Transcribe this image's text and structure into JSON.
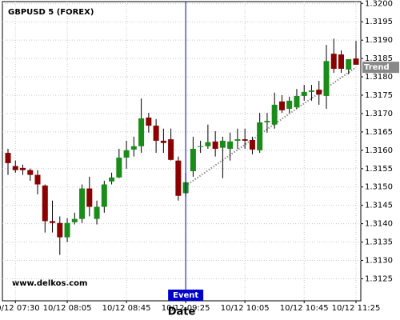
{
  "chart_data": {
    "type": "candlestick",
    "title": "GBPUSD 5 (FOREX)",
    "watermark": "www.delkos.com",
    "x_label": "Date",
    "categories": [
      null,
      "10/12 07:30",
      null,
      null,
      null,
      null,
      null,
      null,
      "10/12 08:05",
      null,
      null,
      null,
      null,
      null,
      null,
      null,
      "10/12 08:45",
      null,
      null,
      null,
      null,
      null,
      null,
      null,
      "10/12 09:25",
      null,
      null,
      null,
      null,
      null,
      null,
      null,
      "10/12 10:05",
      null,
      null,
      null,
      null,
      null,
      null,
      null,
      "10/12 10:45",
      null,
      null,
      null,
      null,
      null,
      null,
      "10/12 11:25"
    ],
    "open": [
      1.31593,
      1.31557,
      1.31552,
      1.31546,
      1.31533,
      1.31504,
      1.31407,
      1.31402,
      1.31363,
      1.31404,
      1.31413,
      1.31496,
      1.31413,
      1.31446,
      1.31515,
      1.31526,
      1.3158,
      1.31602,
      1.31611,
      1.31689,
      1.31667,
      1.31626,
      1.3163,
      1.31572,
      1.31483,
      1.31543,
      1.31609,
      1.31611,
      1.31624,
      1.31607,
      1.31604,
      1.31626,
      1.3163,
      1.31628,
      1.316,
      1.31676,
      1.3167,
      1.31733,
      1.31713,
      1.31717,
      1.31748,
      1.31759,
      1.31765,
      1.31748,
      1.31863,
      1.31861,
      1.3182,
      1.3185
    ],
    "high": [
      1.31604,
      1.31572,
      1.31561,
      1.3155,
      1.31546,
      1.31507,
      1.31463,
      1.3142,
      1.31415,
      1.3143,
      1.31507,
      1.31528,
      1.31463,
      1.31517,
      1.31539,
      1.31604,
      1.31626,
      1.31637,
      1.31741,
      1.31702,
      1.31685,
      1.31659,
      1.31659,
      1.31583,
      1.31539,
      1.31637,
      1.31626,
      1.3167,
      1.31652,
      1.31637,
      1.31648,
      1.31659,
      1.31659,
      1.31637,
      1.31702,
      1.31702,
      1.31757,
      1.3175,
      1.31746,
      1.31767,
      1.31778,
      1.31778,
      1.31789,
      1.31887,
      1.31904,
      1.31872,
      1.31843,
      1.31898
    ],
    "low": [
      1.31533,
      1.31539,
      1.31533,
      1.31517,
      1.3148,
      1.31376,
      1.31376,
      1.31315,
      1.3135,
      1.31398,
      1.31402,
      1.3142,
      1.31398,
      1.3143,
      1.31507,
      1.31524,
      1.3155,
      1.31583,
      1.31593,
      1.31648,
      1.31593,
      1.31593,
      1.31572,
      1.31463,
      1.31474,
      1.31528,
      1.31593,
      1.31604,
      1.31583,
      1.31524,
      1.31572,
      1.31604,
      1.31604,
      1.31589,
      1.31593,
      1.31648,
      1.31659,
      1.31702,
      1.31702,
      1.31713,
      1.31735,
      1.31735,
      1.31724,
      1.31713,
      1.31811,
      1.31811,
      1.31807,
      1.31833
    ],
    "close": [
      1.31565,
      1.31546,
      1.31546,
      1.31533,
      1.31507,
      1.31407,
      1.31402,
      1.31363,
      1.31402,
      1.31413,
      1.31496,
      1.31446,
      1.31446,
      1.31507,
      1.31526,
      1.3158,
      1.316,
      1.31611,
      1.31687,
      1.31667,
      1.31626,
      1.3162,
      1.31574,
      1.31476,
      1.31513,
      1.31604,
      1.31611,
      1.31622,
      1.31604,
      1.31626,
      1.31624,
      1.3163,
      1.31626,
      1.31602,
      1.31676,
      1.3168,
      1.31724,
      1.31709,
      1.31735,
      1.31748,
      1.31759,
      1.31763,
      1.31752,
      1.31843,
      1.31822,
      1.31822,
      1.31848,
      1.31833
    ],
    "up_color": "#1a8c1a",
    "down_color": "#8b0000",
    "ylim": [
      1.3119,
      1.32005
    ],
    "yticks": [
      {
        "value": 1.3125,
        "label": "1.3125"
      },
      {
        "value": 1.313,
        "label": "1.3130"
      },
      1.3135,
      {
        "value": 1.314,
        "label": "1.3140"
      },
      1.3145,
      {
        "value": 1.315,
        "label": "1.3150"
      },
      1.3155,
      {
        "value": 1.316,
        "label": "1.3160"
      },
      1.3165,
      {
        "value": 1.317,
        "label": "1.3170"
      },
      1.3175,
      {
        "value": 1.318,
        "label": "1.3180"
      },
      1.3185,
      {
        "value": 1.319,
        "label": "1.3190"
      },
      1.3195,
      {
        "value": 1.32,
        "label": "1.3200"
      }
    ],
    "grid": true,
    "event": {
      "label": "Event",
      "index": 24,
      "color": "#0000cc"
    },
    "trend": {
      "label": "Trend",
      "from_index": 24,
      "to_index": 47,
      "values": [
        1.31503,
        1.31826
      ],
      "color": "#888888"
    }
  }
}
